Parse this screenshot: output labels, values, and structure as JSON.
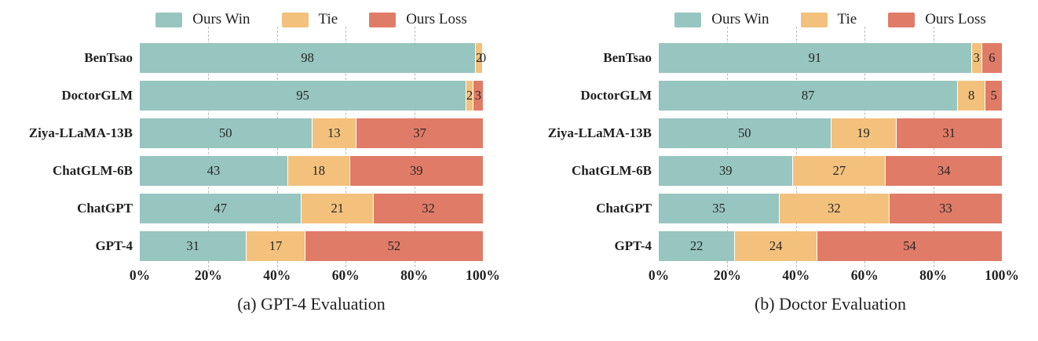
{
  "colors": {
    "win": "#97c5c0",
    "tie": "#f3c17c",
    "loss": "#e07b67",
    "grid": "#b9b9b9",
    "label_text": "#262626",
    "background": "#ffffff"
  },
  "legend": {
    "items": [
      "Ours Win",
      "Tie",
      "Ours Loss"
    ]
  },
  "x_axis": {
    "tick_labels": [
      "0%",
      "20%",
      "40%",
      "60%",
      "80%",
      "100%"
    ],
    "tick_positions": [
      0,
      20,
      40,
      60,
      80,
      100
    ],
    "gridline_positions": [
      20,
      40,
      60,
      80
    ]
  },
  "chart_data": [
    {
      "type": "bar",
      "orientation": "horizontal",
      "stacked": true,
      "title": "(a) GPT-4 Evaluation",
      "xlim": [
        0,
        100
      ],
      "grid": true,
      "legend_position": "top",
      "categories": [
        "BenTsao",
        "DoctorGLM",
        "Ziya-LLaMA-13B",
        "ChatGLM-6B",
        "ChatGPT",
        "GPT-4"
      ],
      "series": [
        {
          "name": "Ours Win",
          "color_key": "win",
          "values": [
            98,
            95,
            50,
            43,
            47,
            31
          ]
        },
        {
          "name": "Tie",
          "color_key": "tie",
          "values": [
            2,
            2,
            13,
            18,
            21,
            17
          ]
        },
        {
          "name": "Ours Loss",
          "color_key": "loss",
          "values": [
            0,
            3,
            37,
            39,
            32,
            52
          ]
        }
      ]
    },
    {
      "type": "bar",
      "orientation": "horizontal",
      "stacked": true,
      "title": "(b) Doctor Evaluation",
      "xlim": [
        0,
        100
      ],
      "grid": true,
      "legend_position": "top",
      "categories": [
        "BenTsao",
        "DoctorGLM",
        "Ziya-LLaMA-13B",
        "ChatGLM-6B",
        "ChatGPT",
        "GPT-4"
      ],
      "series": [
        {
          "name": "Ours Win",
          "color_key": "win",
          "values": [
            91,
            87,
            50,
            39,
            35,
            22
          ]
        },
        {
          "name": "Tie",
          "color_key": "tie",
          "values": [
            3,
            8,
            19,
            27,
            32,
            24
          ]
        },
        {
          "name": "Ours Loss",
          "color_key": "loss",
          "values": [
            6,
            5,
            31,
            34,
            33,
            54
          ]
        }
      ]
    }
  ]
}
